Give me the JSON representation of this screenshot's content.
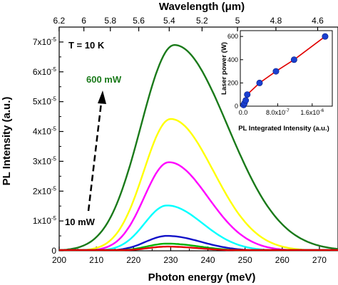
{
  "chart_data": {
    "type": "line",
    "title": "",
    "xlabel": "Photon energy (meV)",
    "ylabel": "PL Intensity (a.u.)",
    "top_xlabel": "Wavelength (μm)",
    "xlim": [
      200,
      275
    ],
    "ylim": [
      0,
      7.5e-05
    ],
    "x_ticks": [
      "200",
      "210",
      "220",
      "230",
      "240",
      "250",
      "260",
      "270"
    ],
    "y_ticks": [
      {
        "mantissa": "0",
        "exp": ""
      },
      {
        "mantissa": "1x10",
        "exp": "-5"
      },
      {
        "mantissa": "2x10",
        "exp": "-5"
      },
      {
        "mantissa": "3x10",
        "exp": "-5"
      },
      {
        "mantissa": "4x10",
        "exp": "-5"
      },
      {
        "mantissa": "5x10",
        "exp": "-5"
      },
      {
        "mantissa": "6x10",
        "exp": "-5"
      },
      {
        "mantissa": "7x10",
        "exp": "-5"
      }
    ],
    "top_ticks": [
      "6.2",
      "6",
      "5.8",
      "5.6",
      "5.4",
      "5.2",
      "5",
      "4.8",
      "4.6"
    ],
    "annotations": {
      "temperature": "T = 10 K",
      "high_power": "600 mW",
      "low_power": "10 mW"
    },
    "series": [
      {
        "color": "#1a7a1a",
        "peak_x": 231,
        "peak_y": 6.9e-05,
        "width": 15
      },
      {
        "color": "#ffff00",
        "peak_x": 230,
        "peak_y": 4.42e-05,
        "width": 12
      },
      {
        "color": "#ff00ff",
        "peak_x": 229.5,
        "peak_y": 2.97e-05,
        "width": 11
      },
      {
        "color": "#00ffff",
        "peak_x": 229,
        "peak_y": 1.52e-05,
        "width": 10
      },
      {
        "color": "#1010c8",
        "peak_x": 229,
        "peak_y": 5e-06,
        "width": 9.5
      },
      {
        "color": "#00b000",
        "peak_x": 229,
        "peak_y": 2.4e-06,
        "width": 9
      },
      {
        "color": "#e00000",
        "peak_x": 229,
        "peak_y": 1.4e-06,
        "width": 9
      }
    ],
    "inset": {
      "type": "scatter",
      "xlabel": "PL Integrated Intensity (a.u.)",
      "ylabel": "Laser power (W)",
      "xlim": [
        0,
        2e-06
      ],
      "ylim": [
        0,
        650
      ],
      "x_ticks": [
        "0.0",
        "8.0x10",
        "1.6x10"
      ],
      "x_tick_exps": [
        "",
        "-7",
        "-6"
      ],
      "y_ticks": [
        "0",
        "200",
        "400",
        "600"
      ],
      "points": [
        {
          "x": 1e-08,
          "y": 10
        },
        {
          "x": 3e-08,
          "y": 25
        },
        {
          "x": 6e-08,
          "y": 50
        },
        {
          "x": 9.5e-08,
          "y": 100
        },
        {
          "x": 3.8e-07,
          "y": 200
        },
        {
          "x": 7.6e-07,
          "y": 300
        },
        {
          "x": 1.18e-06,
          "y": 400
        },
        {
          "x": 1.9e-06,
          "y": 600
        }
      ],
      "fit_color": "#e00000",
      "marker_color": "#1a3fd0"
    }
  }
}
